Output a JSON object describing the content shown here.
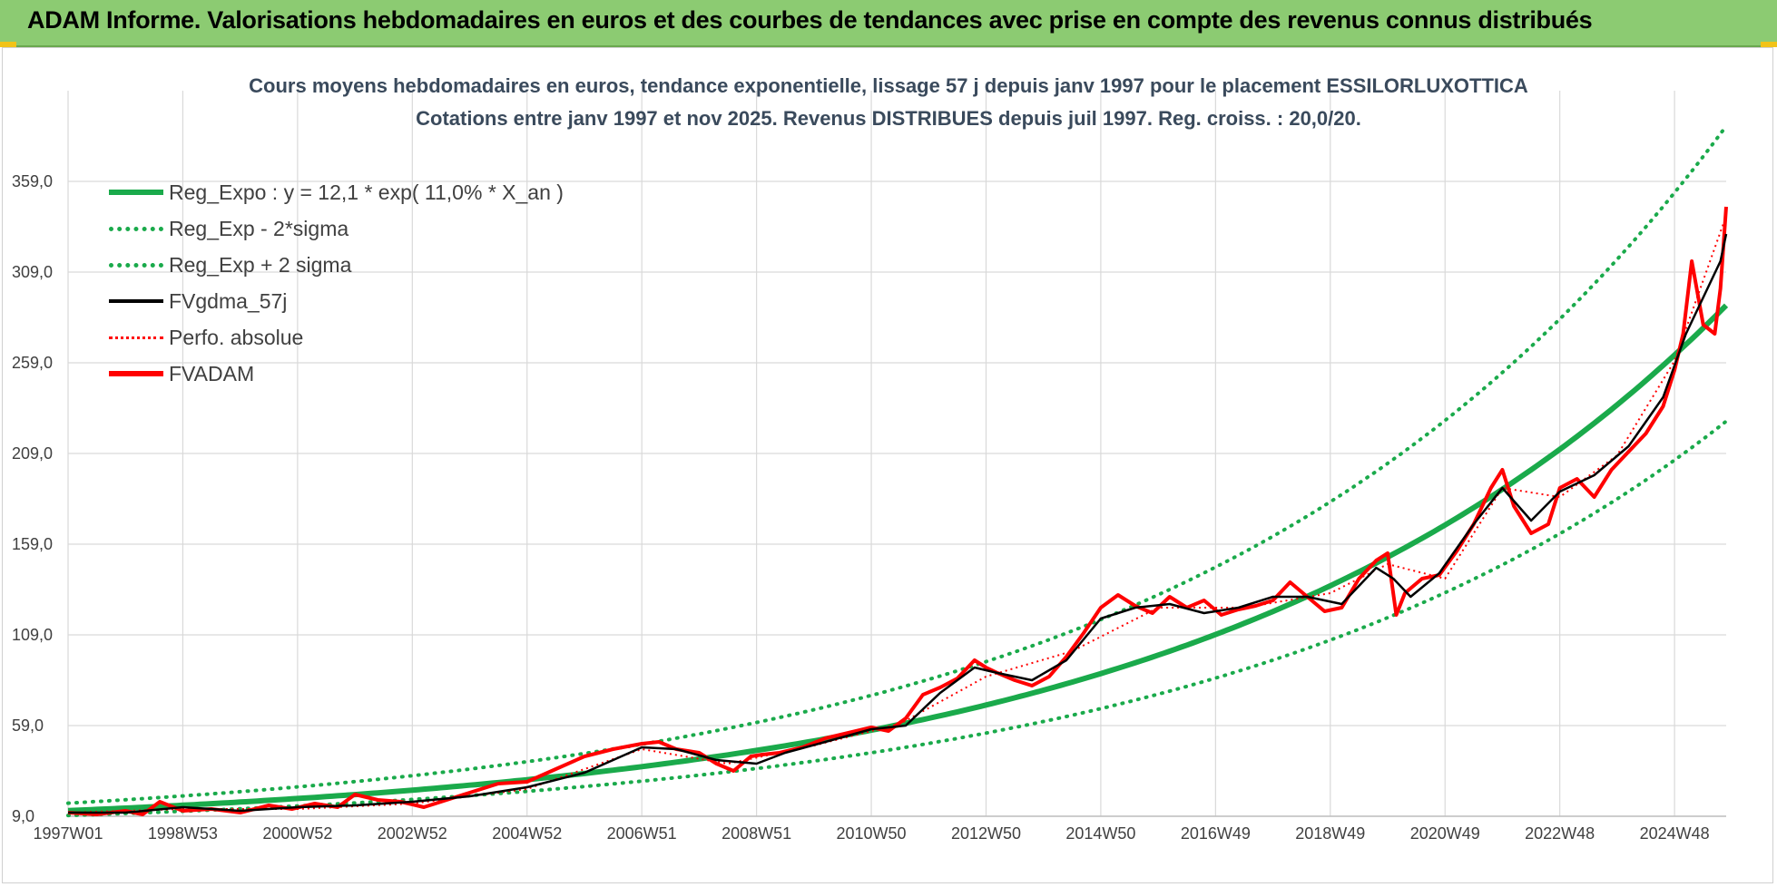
{
  "page_title": "ADAM Informe. Valorisations hebdomadaires en euros et des courbes de tendances avec prise en compte des revenus connus distribués",
  "colors": {
    "banner": "#8ccb72",
    "trend": "#1aaa4b",
    "smooth": "#000000",
    "fvadam": "#ff0000",
    "grid": "#d9d9d9"
  },
  "chart_data": {
    "type": "line",
    "title": "Cours moyens hebdomadaires en euros, tendance exponentielle, lissage 57 j depuis janv 1997 pour le placement ESSILORLUXOTTICA",
    "subtitle": "Cotations entre janv 1997 et nov 2025. Revenus DISTRIBUES depuis juil 1997. Reg. croiss. : 20,0/20.",
    "xlabel": "",
    "ylabel": "",
    "x_range": [
      1997.0,
      2025.9
    ],
    "ylim": [
      9,
      409
    ],
    "y_ticks": [
      "9,0",
      "59,0",
      "109,0",
      "159,0",
      "209,0",
      "259,0",
      "309,0",
      "359,0"
    ],
    "x_ticks": [
      {
        "label": "1997W01",
        "x": 1997.0
      },
      {
        "label": "1998W53",
        "x": 1999.0
      },
      {
        "label": "2000W52",
        "x": 2001.0
      },
      {
        "label": "2002W52",
        "x": 2003.0
      },
      {
        "label": "2004W52",
        "x": 2005.0
      },
      {
        "label": "2006W51",
        "x": 2007.0
      },
      {
        "label": "2008W51",
        "x": 2009.0
      },
      {
        "label": "2010W50",
        "x": 2011.0
      },
      {
        "label": "2012W50",
        "x": 2013.0
      },
      {
        "label": "2014W50",
        "x": 2015.0
      },
      {
        "label": "2016W49",
        "x": 2017.0
      },
      {
        "label": "2018W49",
        "x": 2019.0
      },
      {
        "label": "2020W49",
        "x": 2021.0
      },
      {
        "label": "2022W48",
        "x": 2023.0
      },
      {
        "label": "2024W48",
        "x": 2025.0
      }
    ],
    "regression": {
      "a": 12.1,
      "rate": 0.11,
      "year0": 1997.0,
      "minus2sigma_factor": 0.78,
      "plus2sigma_factor": 1.34
    },
    "legend": [
      {
        "label": "Reg_Expo : y = 12,1 * exp( 11,0% *  X_an )",
        "style": "trend-solid"
      },
      {
        "label": "Reg_Exp - 2*sigma",
        "style": "trend-dotted"
      },
      {
        "label": "Reg_Exp + 2 sigma",
        "style": "trend-dotted"
      },
      {
        "label": "FVgdma_57j",
        "style": "black-solid"
      },
      {
        "label": "Perfo. absolue",
        "style": "red-dotted"
      },
      {
        "label": "FVADAM",
        "style": "red-solid"
      }
    ],
    "series": [
      {
        "name": "FVADAM",
        "x": [
          1997.0,
          1997.5,
          1998.0,
          1998.3,
          1998.6,
          1999.0,
          1999.5,
          2000.0,
          2000.5,
          2000.9,
          2001.3,
          2001.7,
          2002.0,
          2002.4,
          2002.8,
          2003.2,
          2003.6,
          2004.0,
          2004.5,
          2005.0,
          2005.5,
          2006.0,
          2006.5,
          2007.0,
          2007.3,
          2007.6,
          2008.0,
          2008.3,
          2008.6,
          2008.9,
          2009.1,
          2009.4,
          2009.8,
          2010.2,
          2010.6,
          2011.0,
          2011.3,
          2011.6,
          2011.9,
          2012.2,
          2012.5,
          2012.8,
          2013.0,
          2013.2,
          2013.5,
          2013.8,
          2014.1,
          2014.4,
          2014.7,
          2015.0,
          2015.3,
          2015.6,
          2015.9,
          2016.2,
          2016.5,
          2016.8,
          2017.1,
          2017.4,
          2017.7,
          2018.0,
          2018.3,
          2018.6,
          2018.9,
          2019.2,
          2019.5,
          2019.8,
          2020.0,
          2020.15,
          2020.3,
          2020.6,
          2020.9,
          2021.2,
          2021.5,
          2021.8,
          2022.0,
          2022.2,
          2022.5,
          2022.8,
          2023.0,
          2023.3,
          2023.6,
          2023.9,
          2024.2,
          2024.5,
          2024.8,
          2025.0,
          2025.15,
          2025.3,
          2025.5,
          2025.7,
          2025.8,
          2025.9
        ],
        "values": [
          11,
          10,
          12,
          10,
          17,
          12,
          13,
          11,
          15,
          13,
          16,
          14,
          21,
          18,
          17,
          14,
          18,
          22,
          27,
          28,
          35,
          42,
          46,
          49,
          50,
          46,
          44,
          38,
          34,
          42,
          43,
          44,
          47,
          52,
          55,
          58,
          56,
          63,
          76,
          80,
          85,
          95,
          91,
          88,
          84,
          81,
          86,
          97,
          110,
          124,
          131,
          125,
          121,
          130,
          124,
          128,
          120,
          123,
          125,
          128,
          138,
          130,
          122,
          124,
          140,
          150,
          154,
          120,
          132,
          140,
          142,
          155,
          170,
          190,
          200,
          180,
          165,
          170,
          190,
          195,
          185,
          200,
          210,
          220,
          235,
          255,
          275,
          315,
          280,
          275,
          300,
          345
        ]
      },
      {
        "name": "FVgdma_57j",
        "x": [
          1997.0,
          1998.0,
          1999.0,
          2000.0,
          2001.0,
          2002.0,
          2003.0,
          2004.0,
          2005.0,
          2006.0,
          2007.0,
          2007.6,
          2008.3,
          2009.0,
          2009.5,
          2010.2,
          2011.0,
          2011.6,
          2012.2,
          2012.8,
          2013.2,
          2013.8,
          2014.4,
          2015.0,
          2015.6,
          2016.2,
          2016.8,
          2017.4,
          2018.0,
          2018.6,
          2019.2,
          2019.8,
          2020.1,
          2020.4,
          2020.9,
          2021.5,
          2022.0,
          2022.5,
          2023.0,
          2023.6,
          2024.2,
          2024.8,
          2025.2,
          2025.5,
          2025.8,
          2025.9
        ],
        "values": [
          11,
          11,
          14,
          12,
          14,
          15,
          17,
          20,
          25,
          33,
          47,
          46,
          40,
          38,
          44,
          50,
          57,
          59,
          77,
          91,
          88,
          84,
          95,
          118,
          124,
          126,
          121,
          124,
          130,
          130,
          126,
          146,
          140,
          130,
          143,
          170,
          190,
          172,
          188,
          197,
          213,
          240,
          275,
          295,
          315,
          330
        ]
      },
      {
        "name": "Perfo. absolue",
        "x": [
          1997.0,
          1999.0,
          2001.0,
          2003.0,
          2005.0,
          2007.0,
          2008.5,
          2010.0,
          2011.5,
          2013.0,
          2014.5,
          2016.0,
          2017.5,
          2019.0,
          2020.0,
          2021.0,
          2022.0,
          2023.0,
          2024.0,
          2025.0,
          2025.9
        ],
        "values": [
          11,
          13,
          13,
          16,
          24,
          46,
          38,
          48,
          60,
          86,
          100,
          124,
          124,
          132,
          148,
          140,
          190,
          185,
          208,
          260,
          340
        ]
      }
    ]
  }
}
